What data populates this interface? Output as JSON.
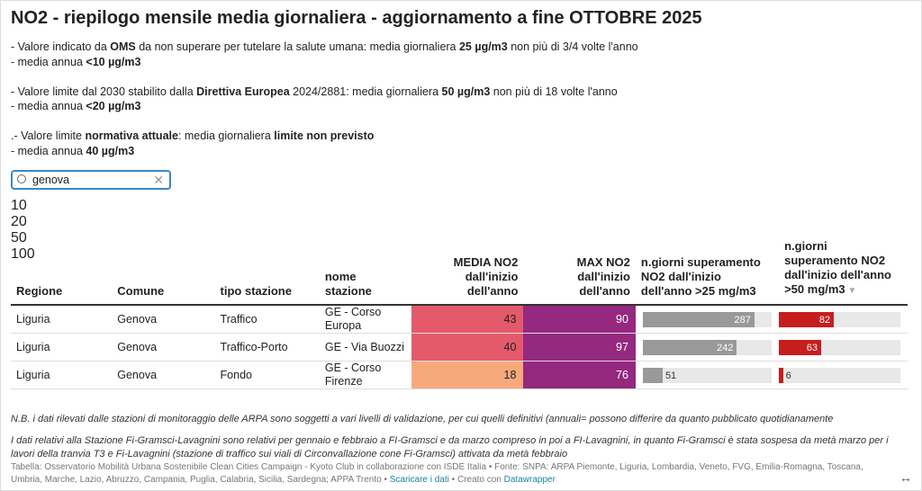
{
  "header": {
    "title": "NO2 - riepilogo mensile media giornaliera - aggiornamento a fine OTTOBRE 2025",
    "intro": [
      [
        {
          "t": "- Valore indicato da "
        },
        {
          "t": "OMS",
          "b": true
        },
        {
          "t": " da non superare per tutelare la salute umana: media giornaliera "
        },
        {
          "t": "25 µg/m3",
          "b": true
        },
        {
          "t": " non più di 3/4 volte l'anno"
        }
      ],
      [
        {
          "t": "- media annua "
        },
        {
          "t": "<10 µg/m3",
          "b": true
        }
      ],
      [],
      [
        {
          "t": "- Valore limite dal 2030 stabilito dalla "
        },
        {
          "t": "Direttiva Europea",
          "b": true
        },
        {
          "t": " 2024/2881: media giornaliera "
        },
        {
          "t": "50 µg/m3",
          "b": true
        },
        {
          "t": " non più di 18 volte l'anno"
        }
      ],
      [
        {
          "t": "- media annua "
        },
        {
          "t": "<20 µg/m3",
          "b": true
        }
      ],
      [],
      [
        {
          "t": ".- Valore limite "
        },
        {
          "t": "normativa attuale",
          "b": true
        },
        {
          "t": ": media giornaliera "
        },
        {
          "t": "limite non previsto",
          "b": true
        }
      ],
      [
        {
          "t": "- media annua "
        },
        {
          "t": "40 µg/m3",
          "b": true
        }
      ]
    ]
  },
  "search": "genova",
  "legend": {
    "colors": [
      "#fdf3b3",
      "#f8a97b",
      "#e45a6a",
      "#95287f",
      "#3a1769"
    ],
    "labels": [
      10,
      20,
      50,
      100
    ]
  },
  "table": {
    "columns": [
      "Regione",
      "Comune",
      "tipo stazione",
      "nome stazione",
      "MEDIA NO2 dall'inizio dell'anno",
      "MAX NO2 dall'inizio dell'anno",
      "n.giorni superamento NO2 dall'inizio dell'anno >25 mg/m3",
      "n.giorni superamento NO2 dall'inizio dell'anno >50 mg/m3"
    ],
    "rows": [
      [
        "Liguria",
        "Genova",
        "Traffico",
        "GE - Corso Europa",
        43,
        90,
        287,
        82
      ],
      [
        "Liguria",
        "Genova",
        "Traffico-Porto",
        "GE - Via Buozzi",
        40,
        97,
        242,
        63
      ],
      [
        "Liguria",
        "Genova",
        "Fondo",
        "GE - Corso Firenze",
        18,
        76,
        51,
        6
      ]
    ],
    "bar_colors": [
      "#999999",
      "#c71e1d"
    ]
  },
  "notes": [
    "N.B. i dati rilevati dalle stazioni di monitoraggio delle ARPA sono soggetti a vari livelli di validazione, per cui quelli definitivi (annuali= possono differire da quanto pubblicato quotidianamente",
    "I dati relativi alla Stazione Fi-Gramsci-Lavagnini sono relativi per gennaio e febbraio a FI-Gramsci e da marzo compreso in poi a FI-Lavagnini, in quanto Fi-Gramsci è stata sospesa da metà marzo per i lavori della tranvia T3 e Fi-Lavagnini (stazione di traffico sui viali di Circonvallazione cone Fi-Gramsci) attivata da metà febbraio"
  ],
  "footer": {
    "source": "Tabella: Osservatorio Mobilità Urbana Sostenibile Clean Cities Campaign - Kyoto Club in collaborazione con ISDE Italia • Fonte: SNPA: ARPA Piemonte, Liguria, Lombardia, Veneto, FVG, Emilia-Romagna, Toscana, Umbria, Marche, Lazio, Abruzzo, Campania, Puglia, Calabria, Sicilia, Sardegna; APPA Trento •",
    "download": "Scaricare i dati",
    "created": "• Creato con",
    "tool": "Datawrapper"
  }
}
